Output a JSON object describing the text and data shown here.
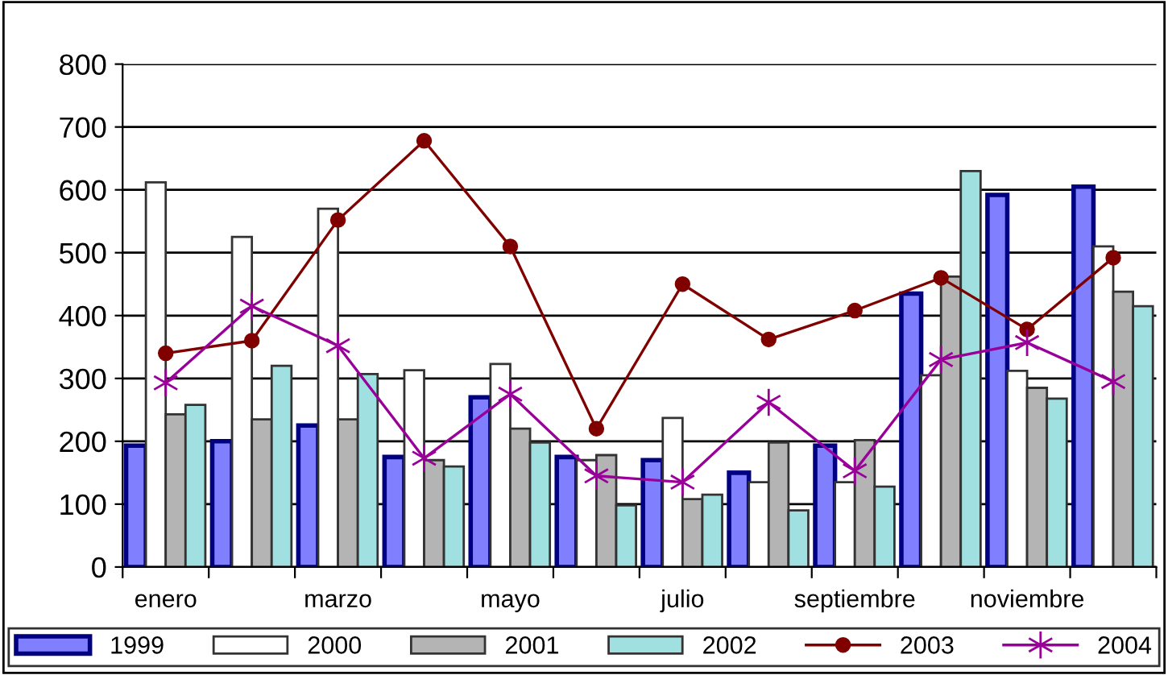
{
  "chart_data": {
    "type": "bar",
    "categories": [
      "enero",
      null,
      "marzo",
      null,
      "mayo",
      null,
      "julio",
      null,
      "septiembre",
      null,
      "noviembre",
      null
    ],
    "series": [
      {
        "name": "1999",
        "color": "#8080ff",
        "values": [
          193,
          200,
          225,
          175,
          270,
          175,
          170,
          150,
          193,
          435,
          592,
          605
        ]
      },
      {
        "name": "2000",
        "color": "#ffffff",
        "values": [
          612,
          525,
          570,
          313,
          323,
          170,
          237,
          135,
          135,
          305,
          312,
          510
        ]
      },
      {
        "name": "2001",
        "color": "#b4b4b4",
        "values": [
          243,
          235,
          235,
          170,
          220,
          178,
          108,
          198,
          202,
          462,
          285,
          438
        ]
      },
      {
        "name": "2002",
        "color": "#a0e0e0",
        "values": [
          258,
          320,
          307,
          160,
          198,
          98,
          115,
          90,
          128,
          630,
          268,
          415
        ]
      },
      {
        "name": "2003",
        "color": "#800000",
        "type": "line",
        "marker": "circle",
        "values": [
          340,
          360,
          552,
          678,
          510,
          220,
          450,
          362,
          408,
          460,
          378,
          492
        ]
      },
      {
        "name": "2004",
        "color": "#990099",
        "type": "line",
        "marker": "cross",
        "values": [
          293,
          415,
          352,
          173,
          275,
          145,
          135,
          262,
          153,
          330,
          357,
          295
        ]
      }
    ],
    "ylim": [
      0,
      800
    ],
    "yticks": [
      0,
      100,
      200,
      300,
      400,
      500,
      600,
      700,
      800
    ],
    "grid": "y",
    "legend": "bottom"
  }
}
